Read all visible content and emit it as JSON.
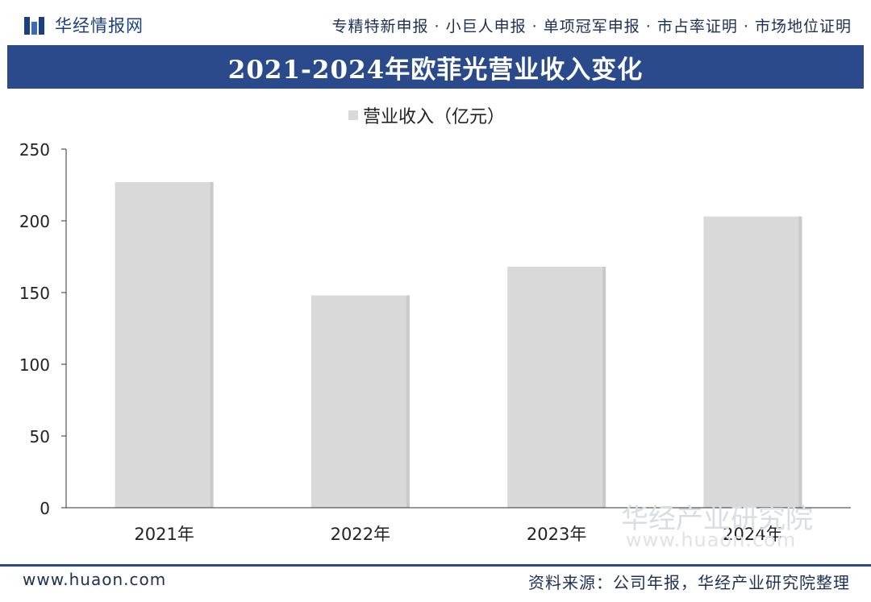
{
  "header": {
    "logo_text": "华经情报网",
    "nav_text": "专精特新申报 · 小巨人申报 · 单项冠军申报 · 市占率证明 · 市场地位证明"
  },
  "colors": {
    "title_bar": "#2a4a8c",
    "bar_fill": "#d9d9d9",
    "brand_blue": "#1c3f82"
  },
  "chart_data": {
    "type": "bar",
    "title": "2021-2024年欧菲光营业收入变化",
    "categories": [
      "2021年",
      "2022年",
      "2023年",
      "2024年"
    ],
    "series": [
      {
        "name": "营业收入（亿元）",
        "values": [
          227,
          148,
          168,
          203
        ]
      }
    ],
    "ylim": [
      0,
      250
    ],
    "yticks": [
      0,
      50,
      100,
      150,
      200,
      250
    ],
    "grid": false,
    "legend": "top-center"
  },
  "watermark": {
    "brand": "华经产业研究院",
    "url": "www.huaon.com"
  },
  "footer": {
    "site": "www.huaon.com",
    "source": "资料来源：公司年报，华经产业研究院整理"
  }
}
